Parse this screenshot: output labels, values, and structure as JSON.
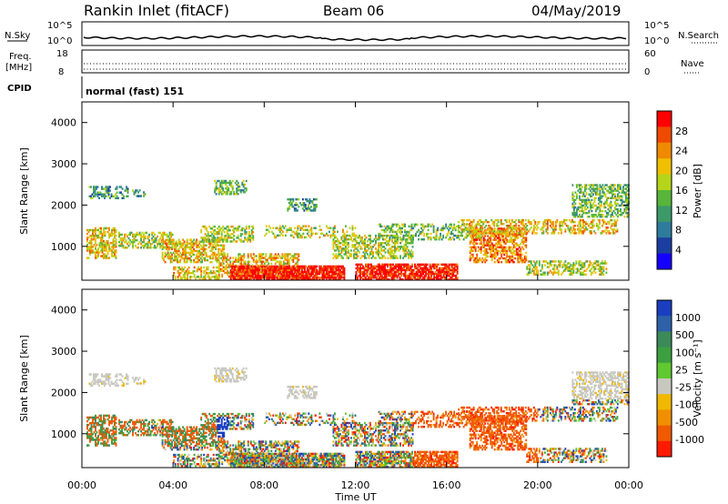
{
  "header": {
    "station": "Rankin Inlet (fitACF)",
    "beam": "Beam 06",
    "date": "04/May/2019"
  },
  "strip_labels": {
    "nsky": "N.Sky",
    "nsky_top": "10^5",
    "nsky_bottom": "10^0",
    "nsearch": "N.Search",
    "nsearch_top": "10^5",
    "nsearch_bottom": "10^0",
    "freq_line1": "Freq.",
    "freq_line2": "[MHz]",
    "freq_top": "18",
    "freq_bottom": "8",
    "nave_label": "Nave",
    "nave_top": "60",
    "nave_bottom": "0",
    "cpid": "CPID",
    "cpid_value": "normal (fast) 151"
  },
  "colors": {
    "power": [
      "#1400ff",
      "#1a3fa0",
      "#2e7b9c",
      "#3c9a6a",
      "#57b53a",
      "#b5d41a",
      "#f0c000",
      "#f08a00",
      "#f04a00",
      "#ff0000"
    ],
    "velocity": [
      "#1a3ec0",
      "#2e61a8",
      "#3c8a5a",
      "#3ca040",
      "#60c830",
      "#c8c8c0",
      "#f0b800",
      "#f09000",
      "#f05a00",
      "#ff1a00"
    ]
  },
  "chart_data": [
    {
      "type": "heatmap",
      "name": "power",
      "ylabel": "Slant Range [km]",
      "xlabel": "",
      "yticks": [
        "1000",
        "2000",
        "3000",
        "4000"
      ],
      "ylim": [
        180,
        4500
      ],
      "xlim": [
        0,
        24
      ],
      "colorbar_label": "Power [dB]",
      "colorbar_ticks": [
        "4",
        "8",
        "12",
        "16",
        "20",
        "24",
        "28"
      ],
      "colorbar_range": [
        0,
        32
      ]
    },
    {
      "type": "heatmap",
      "name": "velocity",
      "ylabel": "Slant Range [km]",
      "xlabel": "Time UT",
      "xticks": [
        "00:00",
        "04:00",
        "08:00",
        "12:00",
        "16:00",
        "20:00",
        "00:00"
      ],
      "yticks": [
        "1000",
        "2000",
        "3000",
        "4000"
      ],
      "ylim": [
        180,
        4500
      ],
      "xlim": [
        0,
        24
      ],
      "colorbar_label": "Velocity [m s⁻¹]",
      "colorbar_ticks": [
        "1000",
        "500",
        "100",
        "25",
        "-25",
        "-100",
        "-500",
        "-1000"
      ]
    }
  ]
}
